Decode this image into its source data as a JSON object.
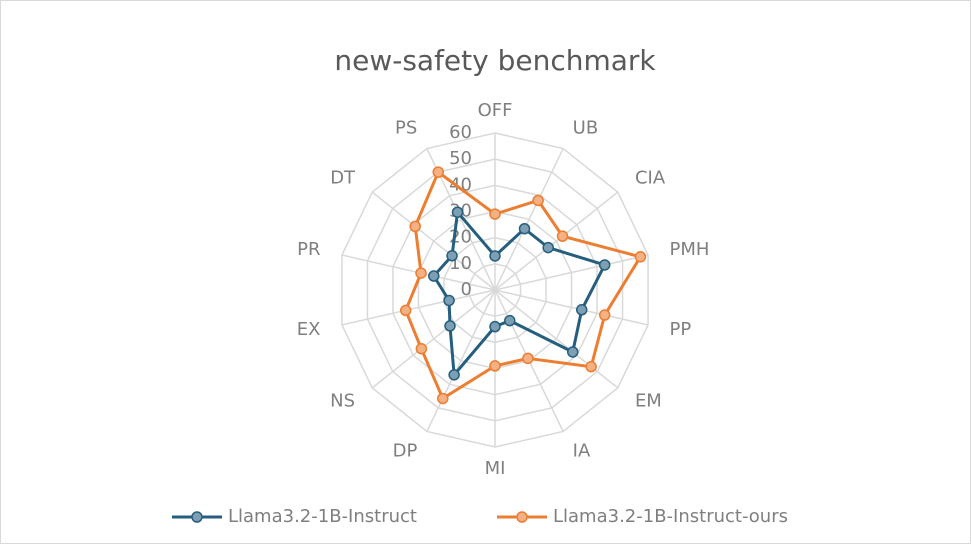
{
  "chart_data": {
    "type": "radar",
    "title": "new-safety benchmark",
    "categories": [
      "OFF",
      "UB",
      "CIA",
      "PMH",
      "PP",
      "EM",
      "IA",
      "MI",
      "DP",
      "NS",
      "EX",
      "PR",
      "DT",
      "PS"
    ],
    "series": [
      {
        "name": "Llama3.2-1B-Instruct",
        "color": "#255e7e",
        "marker_color": "#7c9fb3",
        "values": [
          13,
          26,
          26,
          43,
          34,
          38,
          13,
          14,
          36,
          22,
          18,
          24,
          21,
          33
        ]
      },
      {
        "name": "Llama3.2-1B-Instruct-ours",
        "color": "#ed7d31",
        "marker_color": "#f4b183",
        "values": [
          29,
          38,
          33,
          57,
          43,
          47,
          29,
          29,
          46,
          36,
          35,
          29,
          39,
          50
        ]
      }
    ],
    "rlim": [
      0,
      60
    ],
    "rticks": [
      0,
      10,
      20,
      30,
      40,
      50,
      60
    ],
    "grid": true,
    "legend": "bottom"
  }
}
